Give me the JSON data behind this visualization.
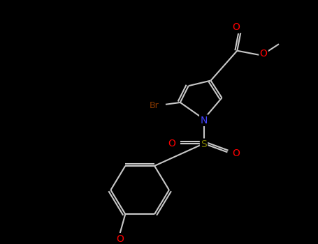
{
  "background": "#000000",
  "bond_color": "#c8c8c8",
  "figsize": [
    4.55,
    3.5
  ],
  "dpi": 100,
  "atom_colors": {
    "O": "#ff0000",
    "N": "#4444ff",
    "S": "#808000",
    "Br": "#8b3a00",
    "C": "#c8c8c8"
  }
}
